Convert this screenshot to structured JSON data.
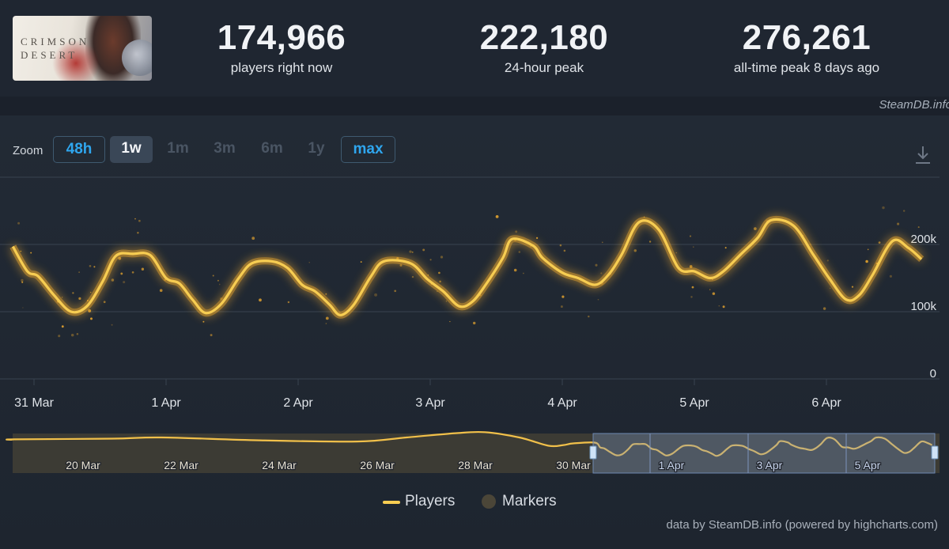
{
  "header": {
    "game_logo_text": "CRIMSON\nDESERT",
    "stats": [
      {
        "value": "174,966",
        "label": "players right now"
      },
      {
        "value": "222,180",
        "label": "24-hour peak"
      },
      {
        "value": "276,261",
        "label": "all-time peak 8 days ago"
      }
    ],
    "credit": "SteamDB.info"
  },
  "toolbar": {
    "zoom_label": "Zoom",
    "buttons": [
      {
        "label": "48h",
        "state": "outlined"
      },
      {
        "label": "1w",
        "state": "active"
      },
      {
        "label": "1m",
        "state": "disabled"
      },
      {
        "label": "3m",
        "state": "disabled"
      },
      {
        "label": "6m",
        "state": "disabled"
      },
      {
        "label": "1y",
        "state": "disabled"
      },
      {
        "label": "max",
        "state": "outlined"
      }
    ],
    "download_icon": "download-icon"
  },
  "chart_data": {
    "type": "line",
    "title": "",
    "xlabel": "",
    "ylabel": "",
    "colors": {
      "line": "#f7cd52",
      "glow": "#ffb52e",
      "grid": "#394350",
      "text": "#dfe3e8"
    },
    "ylim": [
      0,
      300000
    ],
    "yticks": [
      {
        "value": 0,
        "label": "0"
      },
      {
        "value": 100000,
        "label": "100k"
      },
      {
        "value": 200000,
        "label": "200k"
      }
    ],
    "xlim": [
      0,
      7
    ],
    "xticks": [
      {
        "value": 0,
        "label": "31 Mar"
      },
      {
        "value": 1,
        "label": "1 Apr"
      },
      {
        "value": 2,
        "label": "2 Apr"
      },
      {
        "value": 3,
        "label": "3 Apr"
      },
      {
        "value": 4,
        "label": "4 Apr"
      },
      {
        "value": 5,
        "label": "5 Apr"
      },
      {
        "value": 6,
        "label": "6 Apr"
      }
    ],
    "grid": true,
    "series": [
      {
        "name": "Players",
        "points": [
          [
            -0.16,
            197000
          ],
          [
            -0.05,
            160000
          ],
          [
            0.03,
            153000
          ],
          [
            0.15,
            125000
          ],
          [
            0.28,
            100000
          ],
          [
            0.4,
            108000
          ],
          [
            0.52,
            145000
          ],
          [
            0.62,
            183000
          ],
          [
            0.75,
            186000
          ],
          [
            0.88,
            184000
          ],
          [
            1.0,
            150000
          ],
          [
            1.1,
            142000
          ],
          [
            1.2,
            118000
          ],
          [
            1.3,
            98000
          ],
          [
            1.42,
            112000
          ],
          [
            1.55,
            150000
          ],
          [
            1.65,
            172000
          ],
          [
            1.8,
            175000
          ],
          [
            1.92,
            165000
          ],
          [
            2.03,
            140000
          ],
          [
            2.13,
            130000
          ],
          [
            2.24,
            110000
          ],
          [
            2.32,
            95000
          ],
          [
            2.42,
            110000
          ],
          [
            2.55,
            152000
          ],
          [
            2.65,
            175000
          ],
          [
            2.85,
            172000
          ],
          [
            2.98,
            148000
          ],
          [
            3.1,
            130000
          ],
          [
            3.22,
            108000
          ],
          [
            3.32,
            115000
          ],
          [
            3.42,
            140000
          ],
          [
            3.55,
            180000
          ],
          [
            3.62,
            208000
          ],
          [
            3.78,
            198000
          ],
          [
            3.85,
            180000
          ],
          [
            4.0,
            158000
          ],
          [
            4.12,
            150000
          ],
          [
            4.25,
            140000
          ],
          [
            4.35,
            155000
          ],
          [
            4.45,
            185000
          ],
          [
            4.58,
            233000
          ],
          [
            4.73,
            222000
          ],
          [
            4.88,
            165000
          ],
          [
            5.0,
            160000
          ],
          [
            5.12,
            150000
          ],
          [
            5.22,
            160000
          ],
          [
            5.35,
            185000
          ],
          [
            5.48,
            210000
          ],
          [
            5.58,
            236000
          ],
          [
            5.75,
            228000
          ],
          [
            5.9,
            185000
          ],
          [
            6.02,
            150000
          ],
          [
            6.15,
            118000
          ],
          [
            6.25,
            125000
          ],
          [
            6.35,
            155000
          ],
          [
            6.5,
            205000
          ],
          [
            6.62,
            195000
          ],
          [
            6.72,
            178000
          ]
        ]
      }
    ],
    "navigator": {
      "xticks": [
        "20 Mar",
        "22 Mar",
        "24 Mar",
        "26 Mar",
        "28 Mar",
        "30 Mar",
        "1 Apr",
        "3 Apr",
        "5 Apr"
      ],
      "selected_range": [
        "30 Mar",
        "6 Apr"
      ]
    },
    "legend": {
      "position": "bottom-center",
      "items": [
        {
          "label": "Players",
          "color": "#f7cd52",
          "marker": "line"
        },
        {
          "label": "Markers",
          "color": "#4b4638",
          "marker": "circle"
        }
      ]
    }
  },
  "footer": {
    "credit": "data by SteamDB.info (powered by highcharts.com)"
  }
}
